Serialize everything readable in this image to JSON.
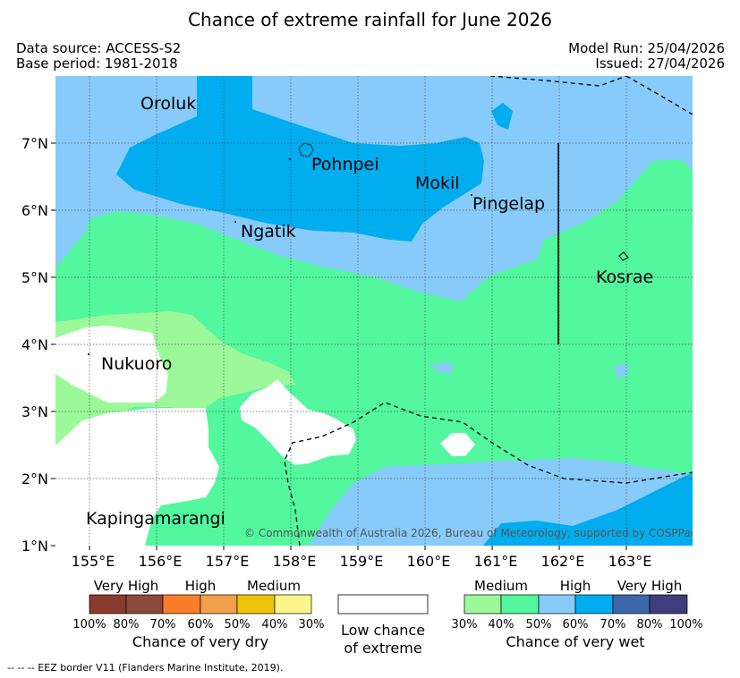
{
  "title": "Chance of extreme rainfall for June 2026",
  "header": {
    "data_source": "Data source: ACCESS-S2",
    "base_period": "Base period: 1981-2018",
    "model_run": "Model Run: 25/04/2026",
    "issued": "Issued: 27/04/2026"
  },
  "map": {
    "x_ticks": [
      "155°E",
      "156°E",
      "157°E",
      "158°E",
      "159°E",
      "160°E",
      "161°E",
      "162°E",
      "163°E"
    ],
    "y_ticks": [
      "7°N",
      "6°N",
      "5°N",
      "4°N",
      "3°N",
      "2°N",
      "1°N"
    ],
    "places": [
      "Oroluk",
      "Pohnpei",
      "Mokil",
      "Pingelap",
      "Ngatik",
      "Kosrae",
      "Nukuoro",
      "Kapingamarangi"
    ],
    "copyright": "© Commonwealth of Australia 2026, Bureau of Meteorology, supported by COSPPac"
  },
  "legend": {
    "dry": {
      "levels": [
        "Very High",
        "High",
        "Medium"
      ],
      "colors": [
        "#8b3a2e",
        "#8c4a3a",
        "#f97d2a",
        "#f0a04a",
        "#eec40a",
        "#fdf58a"
      ],
      "percents": [
        "100%",
        "80%",
        "70%",
        "60%",
        "50%",
        "40%",
        "30%"
      ],
      "caption": "Chance of very dry"
    },
    "low": {
      "line1": "Low chance",
      "line2": "of extreme"
    },
    "wet": {
      "levels": [
        "Medium",
        "High",
        "Very High"
      ],
      "colors": [
        "#9cf99a",
        "#52f79e",
        "#87cbfb",
        "#01adef",
        "#3a68a8",
        "#3f3d7b"
      ],
      "percents": [
        "30%",
        "40%",
        "50%",
        "60%",
        "70%",
        "80%",
        "100%"
      ],
      "caption": "Chance of very wet"
    }
  },
  "footnote": "-- -- -- EEZ border V11 (Flanders Marine Institute, 2019)."
}
